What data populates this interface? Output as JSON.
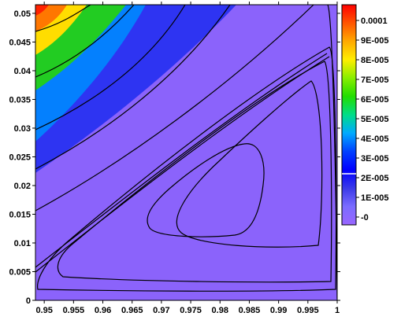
{
  "chart_data": {
    "type": "heatmap",
    "title": "",
    "xlabel": "",
    "ylabel": "",
    "xlim": [
      0.9485,
      1.0
    ],
    "ylim": [
      0,
      0.0515
    ],
    "x_ticks": [
      "0.95",
      "0.955",
      "0.96",
      "0.965",
      "0.97",
      "0.975",
      "0.98",
      "0.985",
      "0.99",
      "0.995",
      "1"
    ],
    "x_tick_values": [
      0.95,
      0.955,
      0.96,
      0.965,
      0.97,
      0.975,
      0.98,
      0.985,
      0.99,
      0.995,
      1.0
    ],
    "y_ticks": [
      "0",
      "0.005",
      "0.01",
      "0.015",
      "0.02",
      "0.025",
      "0.03",
      "0.035",
      "0.04",
      "0.045",
      "0.05"
    ],
    "y_tick_values": [
      0,
      0.005,
      0.01,
      0.015,
      0.02,
      0.025,
      0.03,
      0.035,
      0.04,
      0.045,
      0.05
    ],
    "colorbar": {
      "labels": [
        "0.0001",
        "9E-005",
        "8E-005",
        "7E-005",
        "6E-005",
        "5E-005",
        "4E-005",
        "3E-005",
        "2E-005",
        "1E-005",
        "-0"
      ],
      "values": [
        0.0001,
        9e-05,
        8e-05,
        7e-05,
        6e-05,
        5e-05,
        4e-05,
        3e-05,
        2e-05,
        1e-05,
        0
      ],
      "range": [
        -4e-06,
        0.000108
      ],
      "colors": [
        "#9966ff",
        "#7b6cff",
        "#3a3ae8",
        "#0000ff",
        "#0040ff",
        "#00aaff",
        "#00dd88",
        "#22dd00",
        "#88ee00",
        "#ffee00",
        "#ffaa00",
        "#ff5500",
        "#ff0000"
      ],
      "white_line_value": 2.2e-05
    },
    "corner_max_value": 0.00011,
    "contour_color": "#000000",
    "grid": false
  }
}
